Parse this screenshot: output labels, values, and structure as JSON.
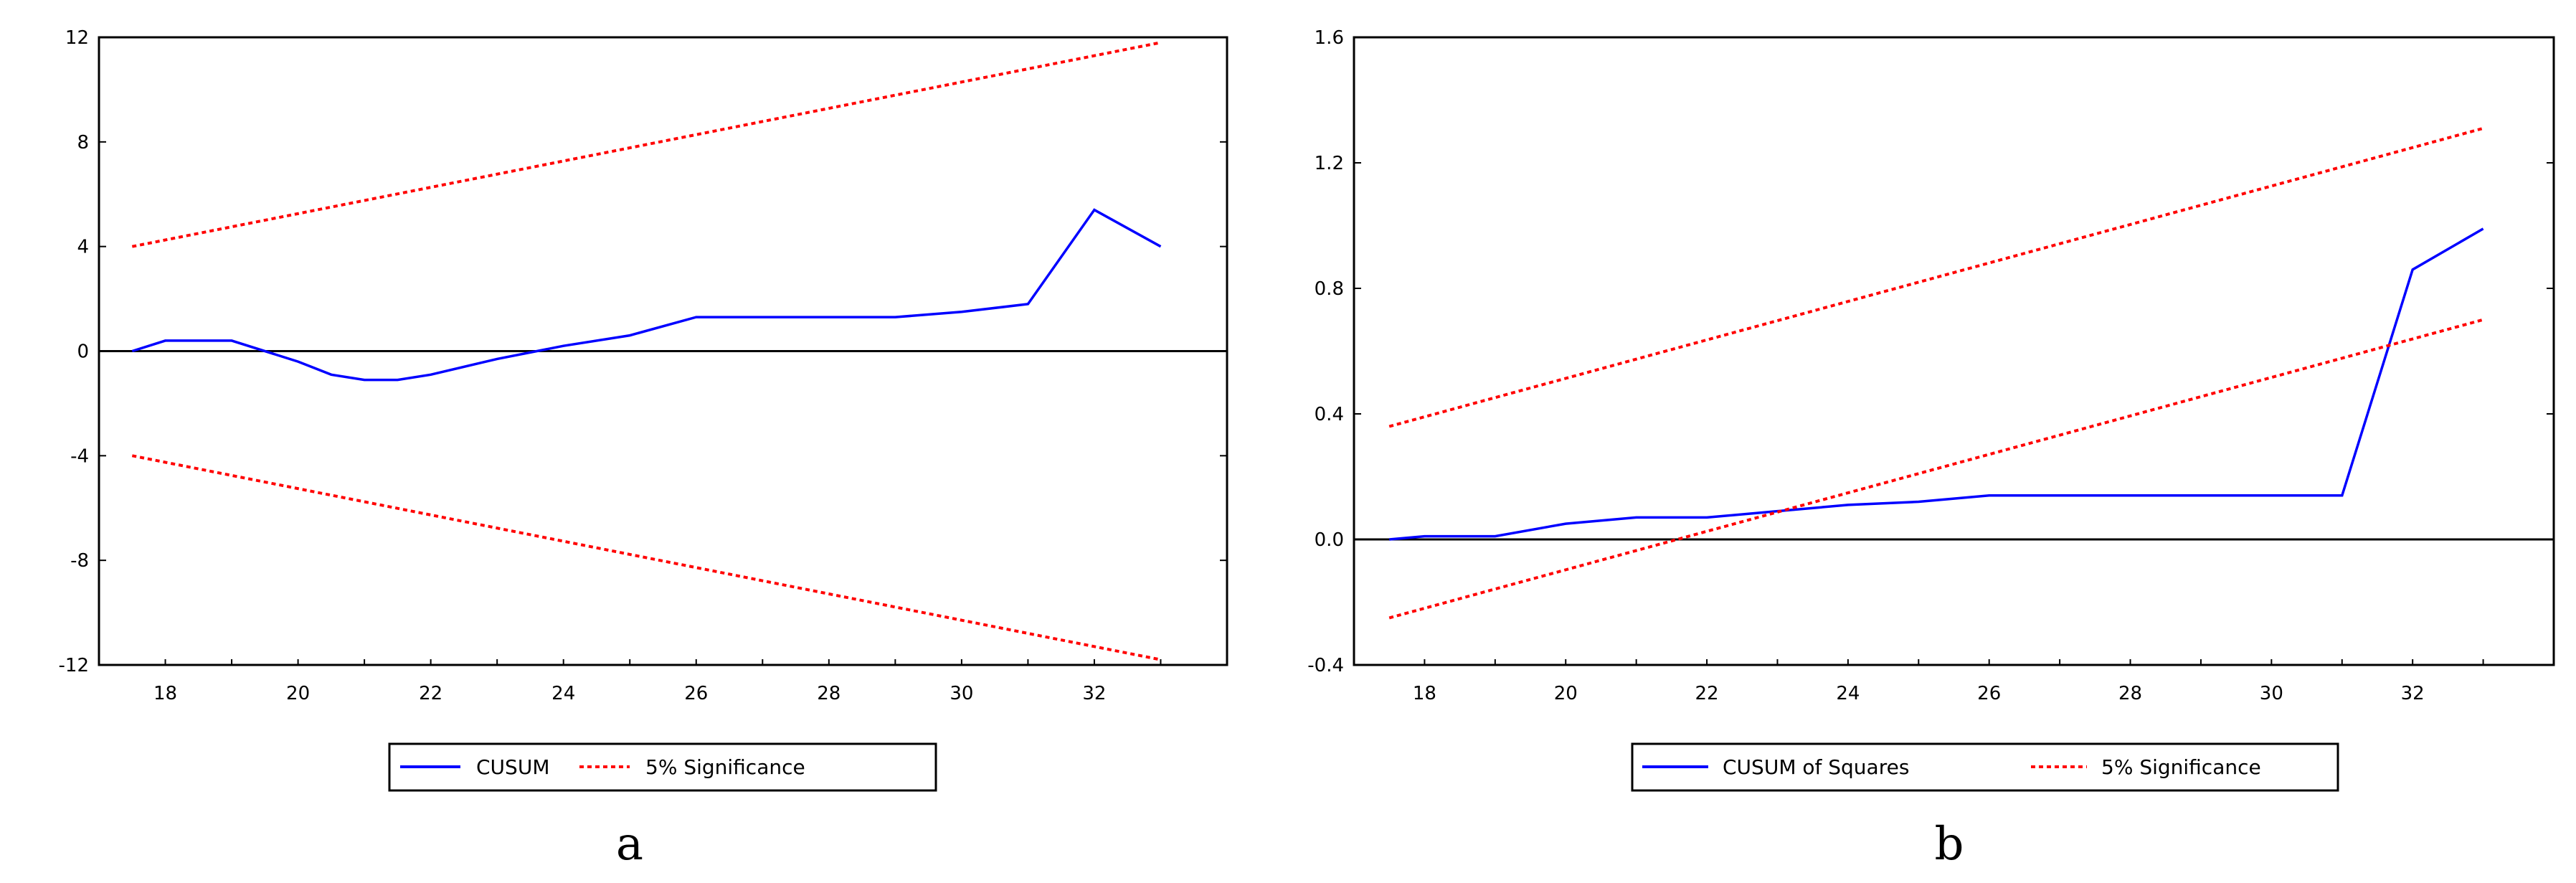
{
  "chart_data": [
    {
      "type": "line",
      "panel": "a",
      "caption": "a",
      "x_range": [
        17,
        34
      ],
      "xticks": [
        18,
        20,
        22,
        24,
        26,
        28,
        30,
        32
      ],
      "xtick_labels": [
        "18",
        "20",
        "22",
        "24",
        "26",
        "28",
        "30",
        "32"
      ],
      "ylim": [
        -12,
        12
      ],
      "yticks": [
        -12,
        -8,
        -4,
        0,
        4,
        8,
        12
      ],
      "ytick_labels": [
        "-12",
        "-8",
        "-4",
        "0",
        "4",
        "8",
        "12"
      ],
      "zero_line": true,
      "grid": false,
      "legend_position": "bottom-center",
      "series": [
        {
          "name": "CUSUM",
          "color": "#0000ff",
          "style": "solid",
          "points": [
            [
              17.5,
              0.0
            ],
            [
              18.0,
              0.4
            ],
            [
              19.0,
              0.4
            ],
            [
              20.0,
              -0.4
            ],
            [
              20.5,
              -0.9
            ],
            [
              21.0,
              -1.1
            ],
            [
              21.5,
              -1.1
            ],
            [
              22.0,
              -0.9
            ],
            [
              23.0,
              -0.3
            ],
            [
              24.0,
              0.2
            ],
            [
              25.0,
              0.6
            ],
            [
              26.0,
              1.3
            ],
            [
              27.0,
              1.3
            ],
            [
              28.0,
              1.3
            ],
            [
              29.0,
              1.3
            ],
            [
              30.0,
              1.5
            ],
            [
              31.0,
              1.8
            ],
            [
              32.0,
              5.4
            ],
            [
              33.0,
              4.0
            ]
          ]
        },
        {
          "name": "5% Significance",
          "color": "#ff0000",
          "style": "dashed",
          "points": [
            [
              17.5,
              4.0
            ],
            [
              33.0,
              11.8
            ]
          ]
        },
        {
          "name": "",
          "color": "#ff0000",
          "style": "dashed",
          "points": [
            [
              17.5,
              -4.0
            ],
            [
              33.0,
              -11.8
            ]
          ]
        }
      ]
    },
    {
      "type": "line",
      "panel": "b",
      "caption": "b",
      "x_range": [
        17,
        34
      ],
      "xticks": [
        18,
        20,
        22,
        24,
        26,
        28,
        30,
        32
      ],
      "xtick_labels": [
        "18",
        "20",
        "22",
        "24",
        "26",
        "28",
        "30",
        "32"
      ],
      "ylim": [
        -0.4,
        1.6
      ],
      "yticks": [
        -0.4,
        0.0,
        0.4,
        0.8,
        1.2,
        1.6
      ],
      "ytick_labels": [
        "-0.4",
        "0.0",
        "0.4",
        "0.8",
        "1.2",
        "1.6"
      ],
      "zero_line": true,
      "grid": false,
      "legend_position": "bottom-center",
      "series": [
        {
          "name": "CUSUM of Squares",
          "color": "#0000ff",
          "style": "solid",
          "points": [
            [
              17.5,
              0.0
            ],
            [
              18.0,
              0.01
            ],
            [
              19.0,
              0.01
            ],
            [
              20.0,
              0.05
            ],
            [
              21.0,
              0.07
            ],
            [
              22.0,
              0.07
            ],
            [
              23.0,
              0.09
            ],
            [
              24.0,
              0.11
            ],
            [
              25.0,
              0.12
            ],
            [
              26.0,
              0.14
            ],
            [
              27.0,
              0.14
            ],
            [
              28.0,
              0.14
            ],
            [
              29.0,
              0.14
            ],
            [
              30.0,
              0.14
            ],
            [
              31.0,
              0.14
            ],
            [
              32.0,
              0.86
            ],
            [
              33.0,
              0.99
            ]
          ]
        },
        {
          "name": "5% Significance",
          "color": "#ff0000",
          "style": "dashed",
          "points": [
            [
              17.5,
              0.36
            ],
            [
              33.0,
              1.31
            ]
          ]
        },
        {
          "name": "",
          "color": "#ff0000",
          "style": "dashed",
          "points": [
            [
              17.5,
              -0.25
            ],
            [
              33.0,
              0.7
            ]
          ]
        }
      ]
    }
  ],
  "panels": [
    {
      "caption": "a",
      "legend": [
        {
          "label": "CUSUM",
          "color": "#0000ff",
          "style": "solid"
        },
        {
          "label": "5% Significance",
          "color": "#ff0000",
          "style": "dashed"
        }
      ]
    },
    {
      "caption": "b",
      "legend": [
        {
          "label": "CUSUM of Squares",
          "color": "#0000ff",
          "style": "solid"
        },
        {
          "label": "5% Significance",
          "color": "#ff0000",
          "style": "dashed"
        }
      ]
    }
  ]
}
